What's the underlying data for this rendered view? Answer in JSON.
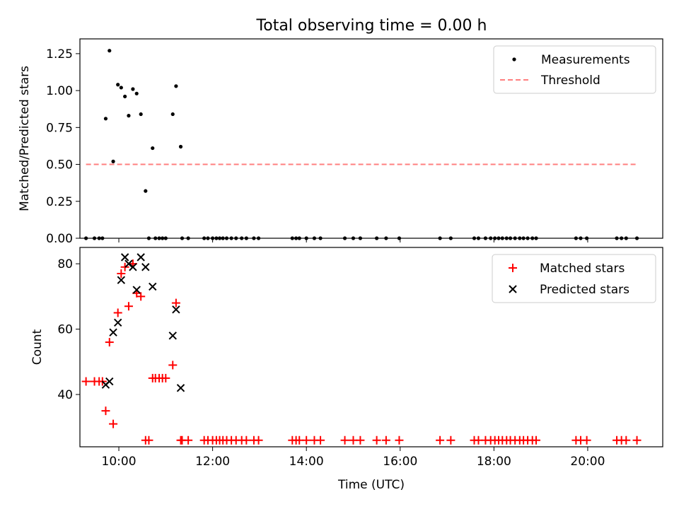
{
  "title": "Total observing time = 0.00 h",
  "chart_data": [
    {
      "type": "scatter",
      "ylabel": "Matched/Predicted stars",
      "xlim": [
        9.17,
        21.6
      ],
      "ylim": [
        0,
        1.35
      ],
      "yticks": [
        0.0,
        0.25,
        0.5,
        0.75,
        1.0,
        1.25
      ],
      "ytick_labels": [
        "0.00",
        "0.25",
        "0.50",
        "0.75",
        "1.00",
        "1.25"
      ],
      "legend_position": "top-right",
      "series": [
        {
          "name": "Measurements",
          "marker": "dot",
          "color": "#000000",
          "x": [
            9.72,
            9.8,
            9.88,
            9.98,
            10.05,
            10.13,
            10.21,
            10.3,
            10.38,
            10.47,
            10.57,
            10.72,
            11.15,
            11.22,
            11.32,
            9.3,
            9.48,
            9.58,
            9.65,
            10.64,
            10.78,
            10.86,
            10.93,
            11.0,
            11.35,
            11.48,
            11.82,
            11.9,
            12.0,
            12.08,
            12.15,
            12.22,
            12.3,
            12.4,
            12.5,
            12.62,
            12.72,
            12.88,
            12.98,
            13.7,
            13.78,
            13.85,
            14.0,
            14.17,
            14.3,
            14.82,
            15.0,
            15.15,
            15.5,
            15.7,
            15.98,
            16.85,
            17.08,
            17.58,
            17.67,
            17.82,
            17.93,
            18.02,
            18.1,
            18.18,
            18.27,
            18.35,
            18.45,
            18.55,
            18.63,
            18.72,
            18.82,
            18.9,
            19.75,
            19.85,
            19.98,
            20.62,
            20.72,
            20.82,
            21.05
          ],
          "y": [
            0.81,
            1.27,
            0.52,
            1.04,
            1.02,
            0.96,
            0.83,
            1.01,
            0.98,
            0.84,
            0.32,
            0.61,
            0.84,
            1.03,
            0.62,
            0,
            0,
            0,
            0,
            0,
            0,
            0,
            0,
            0,
            0,
            0,
            0,
            0,
            0,
            0,
            0,
            0,
            0,
            0,
            0,
            0,
            0,
            0,
            0,
            0,
            0,
            0,
            0,
            0,
            0,
            0,
            0,
            0,
            0,
            0,
            0,
            0,
            0,
            0,
            0,
            0,
            0,
            0,
            0,
            0,
            0,
            0,
            0,
            0,
            0,
            0,
            0,
            0,
            0,
            0,
            0,
            0,
            0,
            0,
            0
          ]
        },
        {
          "name": "Threshold",
          "marker": "dashed-line",
          "color": "#ff7f7f",
          "x": [
            9.3,
            21.05
          ],
          "y": [
            0.5,
            0.5
          ]
        }
      ]
    },
    {
      "type": "scatter",
      "xlabel": "Time (UTC)",
      "ylabel": "Count",
      "xlim": [
        9.17,
        21.6
      ],
      "ylim": [
        24,
        85
      ],
      "xticks": [
        10,
        12,
        14,
        16,
        18,
        20
      ],
      "xtick_labels": [
        "10:00",
        "12:00",
        "14:00",
        "16:00",
        "18:00",
        "20:00"
      ],
      "yticks": [
        40,
        60,
        80
      ],
      "ytick_labels": [
        "40",
        "60",
        "80"
      ],
      "legend_position": "top-right",
      "series": [
        {
          "name": "Matched stars",
          "marker": "plus",
          "color": "#ff0000",
          "x": [
            9.3,
            9.48,
            9.58,
            9.65,
            9.72,
            9.8,
            9.88,
            9.98,
            10.05,
            10.13,
            10.21,
            10.3,
            10.38,
            10.47,
            10.57,
            10.64,
            10.72,
            10.78,
            10.86,
            10.93,
            11.0,
            11.15,
            11.22,
            11.32,
            11.35,
            11.48,
            11.82,
            11.9,
            12.0,
            12.08,
            12.15,
            12.22,
            12.3,
            12.4,
            12.5,
            12.62,
            12.72,
            12.88,
            12.98,
            13.7,
            13.78,
            13.85,
            14.0,
            14.17,
            14.3,
            14.82,
            15.0,
            15.15,
            15.5,
            15.7,
            15.98,
            16.85,
            17.08,
            17.58,
            17.67,
            17.82,
            17.93,
            18.02,
            18.1,
            18.18,
            18.27,
            18.35,
            18.45,
            18.55,
            18.63,
            18.72,
            18.82,
            18.9,
            19.75,
            19.85,
            19.98,
            20.62,
            20.72,
            20.82,
            21.05
          ],
          "y": [
            44,
            44,
            44,
            44,
            35,
            56,
            31,
            65,
            77,
            79,
            67,
            80,
            71,
            70,
            26,
            26,
            45,
            45,
            45,
            45,
            45,
            49,
            68,
            26,
            26,
            26,
            26,
            26,
            26,
            26,
            26,
            26,
            26,
            26,
            26,
            26,
            26,
            26,
            26,
            26,
            26,
            26,
            26,
            26,
            26,
            26,
            26,
            26,
            26,
            26,
            26,
            26,
            26,
            26,
            26,
            26,
            26,
            26,
            26,
            26,
            26,
            26,
            26,
            26,
            26,
            26,
            26,
            26,
            26,
            26,
            26,
            26,
            26,
            26,
            26
          ]
        },
        {
          "name": "Predicted stars",
          "marker": "x",
          "color": "#000000",
          "x": [
            9.72,
            9.8,
            9.88,
            9.98,
            10.05,
            10.13,
            10.21,
            10.3,
            10.38,
            10.47,
            10.57,
            10.72,
            11.15,
            11.22,
            11.32
          ],
          "y": [
            43,
            44,
            59,
            62,
            75,
            82,
            80,
            79,
            72,
            82,
            79,
            73,
            58,
            66,
            42
          ]
        }
      ]
    }
  ]
}
